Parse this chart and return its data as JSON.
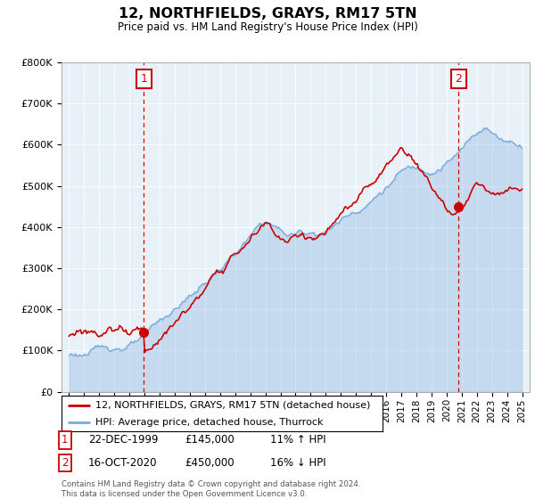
{
  "title": "12, NORTHFIELDS, GRAYS, RM17 5TN",
  "subtitle": "Price paid vs. HM Land Registry's House Price Index (HPI)",
  "legend_line1": "12, NORTHFIELDS, GRAYS, RM17 5TN (detached house)",
  "legend_line2": "HPI: Average price, detached house, Thurrock",
  "annotation1_date": "22-DEC-1999",
  "annotation1_price": "£145,000",
  "annotation1_hpi": "11% ↑ HPI",
  "annotation2_date": "16-OCT-2020",
  "annotation2_price": "£450,000",
  "annotation2_hpi": "16% ↓ HPI",
  "footnote": "Contains HM Land Registry data © Crown copyright and database right 2024.\nThis data is licensed under the Open Government Licence v3.0.",
  "red_color": "#cc0000",
  "blue_color": "#7aaadd",
  "blue_fill": "#ddeeff",
  "background_color": "#ffffff",
  "plot_bg_color": "#e8f0f8",
  "grid_color": "#ffffff",
  "ylim": [
    0,
    800000
  ],
  "yticks": [
    0,
    100000,
    200000,
    300000,
    400000,
    500000,
    600000,
    700000,
    800000
  ],
  "t1": 1999.96,
  "t2": 2020.79,
  "price1": 145000,
  "price2": 450000
}
